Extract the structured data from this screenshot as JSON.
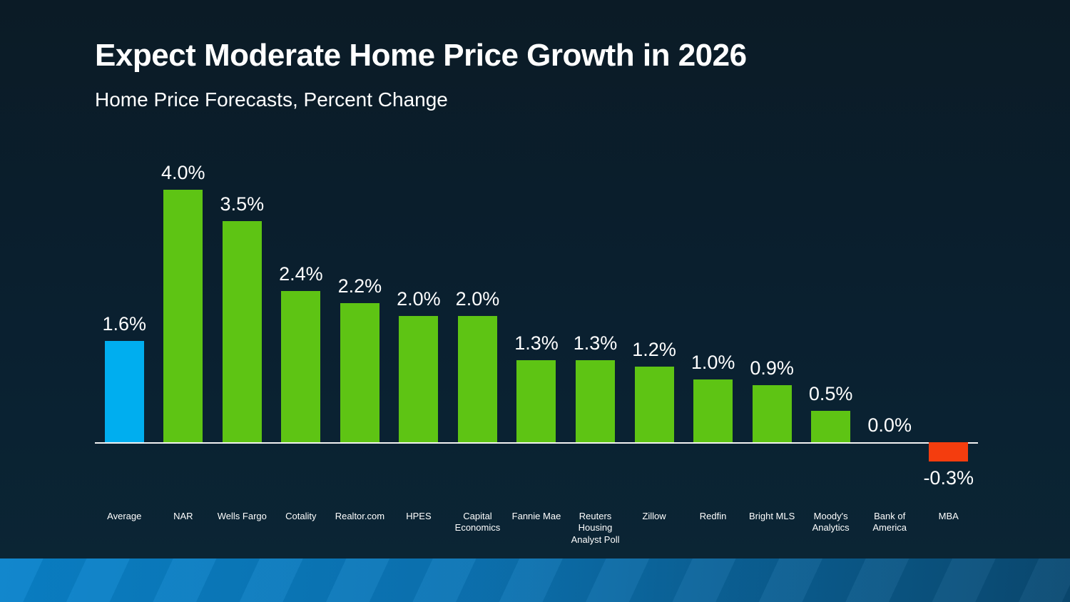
{
  "slide": {
    "title": "Expect Moderate Home Price Growth in 2026",
    "subtitle": "Home Price Forecasts, Percent Change"
  },
  "colors": {
    "background_top": "#0b1b26",
    "background_bottom": "#0b2635",
    "bar_positive": "#5ec414",
    "bar_highlight": "#00aeef",
    "bar_negative": "#f43d0e",
    "axis": "#f2f2f2",
    "text": "#ffffff",
    "footer_left": "#0983cb",
    "footer_right": "#0a4a72"
  },
  "chart_data": {
    "type": "bar",
    "title": "Expect Moderate Home Price Growth in 2026",
    "subtitle": "Home Price Forecasts, Percent Change",
    "unit": "%",
    "grid": false,
    "legend": null,
    "ylim": [
      -0.5,
      4.5
    ],
    "categories": [
      "Average",
      "NAR",
      "Wells Fargo",
      "Cotality",
      "Realtor.com",
      "HPES",
      "Capital Economics",
      "Fannie Mae",
      "Reuters Housing Analyst Poll",
      "Zillow",
      "Redfin",
      "Bright MLS",
      "Moody's Analytics",
      "Bank of America",
      "MBA"
    ],
    "category_display": [
      "Average",
      "NAR",
      "Wells Fargo",
      "Cotality",
      "Realtor.com",
      "HPES",
      "Capital\nEconomics",
      "Fannie Mae",
      "Reuters\nHousing\nAnalyst Poll",
      "Zillow",
      "Redfin",
      "Bright MLS",
      "Moody's\nAnalytics",
      "Bank of\nAmerica",
      "MBA"
    ],
    "values": [
      1.6,
      4.0,
      3.5,
      2.4,
      2.2,
      2.0,
      2.0,
      1.3,
      1.3,
      1.2,
      1.0,
      0.9,
      0.5,
      0.0,
      -0.3
    ],
    "data_labels": [
      "1.6%",
      "4.0%",
      "3.5%",
      "2.4%",
      "2.2%",
      "2.0%",
      "2.0%",
      "1.3%",
      "1.3%",
      "1.2%",
      "1.0%",
      "0.9%",
      "0.5%",
      "0.0%",
      "-0.3%"
    ],
    "bar_color_roles": [
      "highlight",
      "positive",
      "positive",
      "positive",
      "positive",
      "positive",
      "positive",
      "positive",
      "positive",
      "positive",
      "positive",
      "positive",
      "positive",
      "none",
      "negative"
    ]
  }
}
